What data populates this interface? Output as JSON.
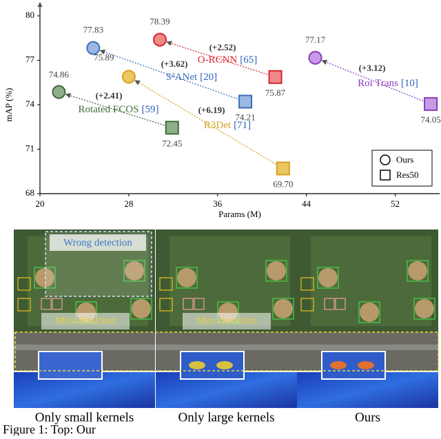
{
  "chart_data": {
    "type": "scatter",
    "xlabel": "Params (M)",
    "ylabel": "mAP (%)",
    "xlim": [
      20,
      56
    ],
    "ylim": [
      68,
      80
    ],
    "xticks": [
      20,
      28,
      36,
      44,
      52
    ],
    "yticks": [
      68,
      71,
      74,
      77,
      80
    ],
    "legend": "lower right",
    "series": [
      {
        "name": "Ours",
        "marker": "circle",
        "x": [
          30.8,
          24.8,
          21.7,
          28.0,
          44.8
        ],
        "values": [
          78.39,
          77.83,
          74.86,
          75.89,
          77.17
        ]
      },
      {
        "name": "Res50",
        "marker": "square",
        "x": [
          41.2,
          38.5,
          31.9,
          41.9,
          55.2
        ],
        "values": [
          75.87,
          74.21,
          72.45,
          69.7,
          74.05
        ],
        "value_labels": [
          "75.87",
          "74.21",
          "72.45",
          "69.70",
          "74.05"
        ]
      }
    ],
    "methods": [
      {
        "name": "O-RCNN",
        "ref": "[65]",
        "gain_label": "(+2.52)",
        "color": "#d8262e",
        "fill": "#f08a8a"
      },
      {
        "name": "S²ANet",
        "ref": "[20]",
        "gain_label": "(+3.62)",
        "color": "#3d6fb8",
        "fill": "#9ab8e2"
      },
      {
        "name": "Rotated FCOS",
        "ref": "[59]",
        "gain_label": "(+2.41)",
        "color": "#3f6b3a",
        "fill": "#8fae8a"
      },
      {
        "name": "R3Det",
        "ref": "[71]",
        "gain_label": "(+6.19)",
        "color": "#d4a020",
        "fill": "#ecc860"
      },
      {
        "name": "Roi Trans",
        "ref": "[10]",
        "gain_label": "(+3.12)",
        "color": "#8a3cc0",
        "fill": "#c89ae6"
      }
    ]
  },
  "figure": {
    "panels": [
      {
        "caption": "Only small kernels"
      },
      {
        "caption": "Only large kernels"
      },
      {
        "caption": "Ours"
      }
    ],
    "annotations": {
      "wrong": "Wrong detection",
      "miss": "Miss detection"
    },
    "caption": "Figure 1: Top: Our"
  }
}
